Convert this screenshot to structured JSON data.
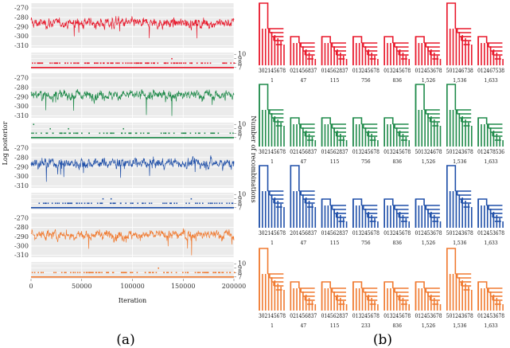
{
  "captions": {
    "left": "(a)",
    "right": "(b)"
  },
  "chart_data": [
    {
      "type": "line",
      "panel": "a",
      "xlabel": "Iteration",
      "ylabel_left": "Log posterior",
      "ylabel_right": "Number of recombinations",
      "xlim": [
        0,
        200000
      ],
      "xticks": [
        "0",
        "50000",
        "100000",
        "150000",
        "200000"
      ],
      "xtick_values": [
        0,
        50000,
        100000,
        150000,
        200000
      ],
      "logpost_ylim": [
        -312,
        -265
      ],
      "logpost_yticks": [
        "-270",
        "-280",
        "-290",
        "-300",
        "-310"
      ],
      "logpost_ytick_values": [
        -270,
        -280,
        -290,
        -300,
        -310
      ],
      "recomb_ylim": [
        6.6,
        10.4
      ],
      "recomb_yticks": [
        "10",
        "9",
        "8",
        "7"
      ],
      "recomb_ytick_values": [
        10,
        9,
        8,
        7
      ],
      "grid": true,
      "series": [
        {
          "color": "#e8192c",
          "logpost_mean": -286,
          "recomb_levels": [
            {
              "value": 7,
              "freq": 1.0
            },
            {
              "value": 8,
              "freq": 0.85
            },
            {
              "value": 9,
              "freq": 0.01
            }
          ]
        },
        {
          "color": "#1f8a4a",
          "logpost_mean": -288,
          "recomb_levels": [
            {
              "value": 7,
              "freq": 1.0
            },
            {
              "value": 8,
              "freq": 0.55
            },
            {
              "value": 9,
              "freq": 0.02
            },
            {
              "value": 10,
              "freq": 0.005
            }
          ]
        },
        {
          "color": "#1f4fa8",
          "logpost_mean": -286,
          "recomb_levels": [
            {
              "value": 7,
              "freq": 1.0
            },
            {
              "value": 8,
              "freq": 0.55
            },
            {
              "value": 9,
              "freq": 0.02
            }
          ]
        },
        {
          "color": "#f07a30",
          "logpost_mean": -288,
          "recomb_levels": [
            {
              "value": 7,
              "freq": 1.0
            },
            {
              "value": 8,
              "freq": 0.65
            },
            {
              "value": 9,
              "freq": 0.01
            }
          ]
        }
      ]
    },
    {
      "type": "diagram",
      "panel": "b",
      "rows": [
        {
          "color": "#e8192c",
          "labels": [
            "302145678",
            "021456837",
            "014562837",
            "013245678",
            "013245678",
            "012453678",
            "501246738",
            "012467538"
          ],
          "counts": [
            "1",
            "47",
            "115",
            "756",
            "836",
            "1,526",
            "1,536",
            "1,633"
          ],
          "tall": [
            0,
            6
          ]
        },
        {
          "color": "#1f8a4a",
          "labels": [
            "302145678",
            "021456837",
            "014562837",
            "013245678",
            "013245678",
            "501324678",
            "501243678",
            "012478536"
          ],
          "counts": [
            "1",
            "47",
            "115",
            "756",
            "836",
            "1,526",
            "1,536",
            "1,633"
          ],
          "tall": [
            0,
            5,
            6
          ]
        },
        {
          "color": "#1f4fa8",
          "labels": [
            "302145678",
            "201456837",
            "014562837",
            "013245678",
            "013245678",
            "012453678",
            "501243678",
            "012453678"
          ],
          "counts": [
            "1",
            "47",
            "115",
            "756",
            "836",
            "1,526",
            "1,536",
            "1,633"
          ],
          "tall": [
            0,
            1,
            6
          ]
        },
        {
          "color": "#f07a30",
          "labels": [
            "302145678",
            "021456837",
            "014562837",
            "013245678",
            "013245678",
            "012453678",
            "501243678",
            "012453678"
          ],
          "counts": [
            "1",
            "47",
            "115",
            "233",
            "836",
            "1,526",
            "1,536",
            "1,633"
          ],
          "tall": [
            0,
            6
          ]
        }
      ]
    }
  ]
}
